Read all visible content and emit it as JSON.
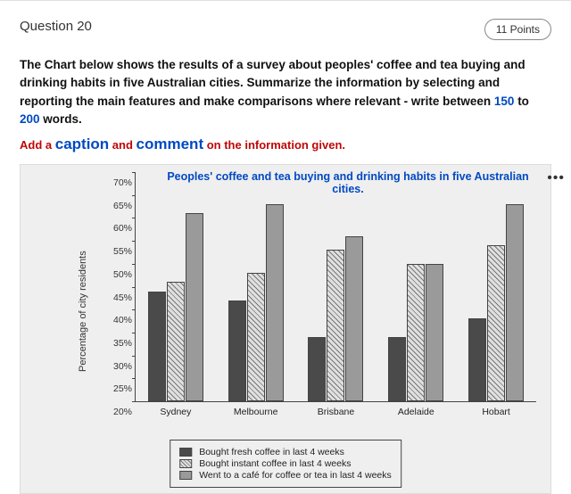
{
  "header": {
    "question_label": "Question 20",
    "points_label": "11 Points"
  },
  "instruction": {
    "pre": " The Chart below shows the results of a survey about peoples' coffee and tea buying and drinking habits in five Australian cities. Summarize the information by selecting and reporting the main features and make comparisons where relevant - write between ",
    "min": "150",
    "mid": " to ",
    "max": "200",
    "post": " words."
  },
  "caption_line": {
    "p1": "Add a ",
    "caption": "caption",
    "p2": " and ",
    "comment": "comment",
    "p3": " on the information given."
  },
  "chart": {
    "title": "Peoples' coffee and tea buying and drinking habits in five Australian cities.",
    "y_axis_label": "Percentage of city residents",
    "y_min": 20,
    "y_max": 70,
    "y_ticks": [
      70,
      65,
      60,
      55,
      50,
      45,
      40,
      35,
      30,
      25,
      20
    ],
    "cities": [
      "Sydney",
      "Melbourne",
      "Brisbane",
      "Adelaide",
      "Hobart"
    ],
    "series": [
      {
        "key": "fresh",
        "label": "Bought fresh coffee in last 4 weeks",
        "style": "solid"
      },
      {
        "key": "instant",
        "label": "Bought instant coffee in last 4 weeks",
        "style": "hatch"
      },
      {
        "key": "cafe",
        "label": "Went to a café for coffee or tea in last 4 weeks",
        "style": "gray"
      }
    ],
    "values": {
      "Sydney": {
        "fresh": 44,
        "instant": 46,
        "cafe": 61
      },
      "Melbourne": {
        "fresh": 42,
        "instant": 48,
        "cafe": 63
      },
      "Brisbane": {
        "fresh": 34,
        "instant": 53,
        "cafe": 56
      },
      "Adelaide": {
        "fresh": 34,
        "instant": 50,
        "cafe": 50
      },
      "Hobart": {
        "fresh": 38,
        "instant": 54,
        "cafe": 63
      }
    },
    "colors": {
      "solid": "#4a4a4a",
      "gray": "#9a9a9a",
      "hatch_bg": "#e0e0e0",
      "hatch_line": "#777777",
      "chart_bg": "#efefef",
      "axis": "#444444",
      "title_color": "#0049c2"
    }
  }
}
